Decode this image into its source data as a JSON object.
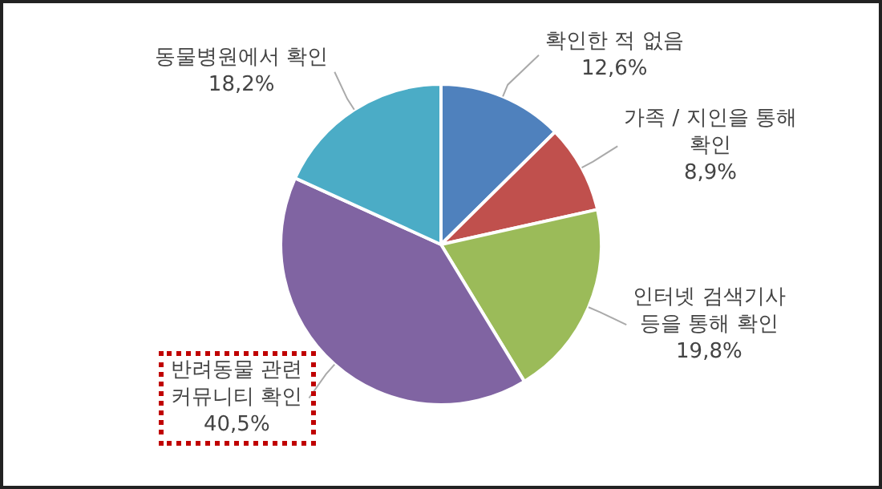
{
  "chart_data": {
    "type": "pie",
    "categories": [
      "확인한 적 없음",
      "가족 / 지인을 통해 확인",
      "인터넷 검색기사 등을 통해 확인",
      "반려동물 관련 커뮤니티 확인",
      "동물병원에서 확인"
    ],
    "values": [
      12.6,
      8.9,
      19.8,
      40.5,
      18.2
    ],
    "value_labels": [
      "12,6%",
      "8,9%",
      "19,8%",
      "40,5%",
      "18,2%"
    ],
    "colors": [
      "#4f81bd",
      "#c0504d",
      "#9bbb59",
      "#8064a2",
      "#4bacc6"
    ],
    "legend": false
  }
}
